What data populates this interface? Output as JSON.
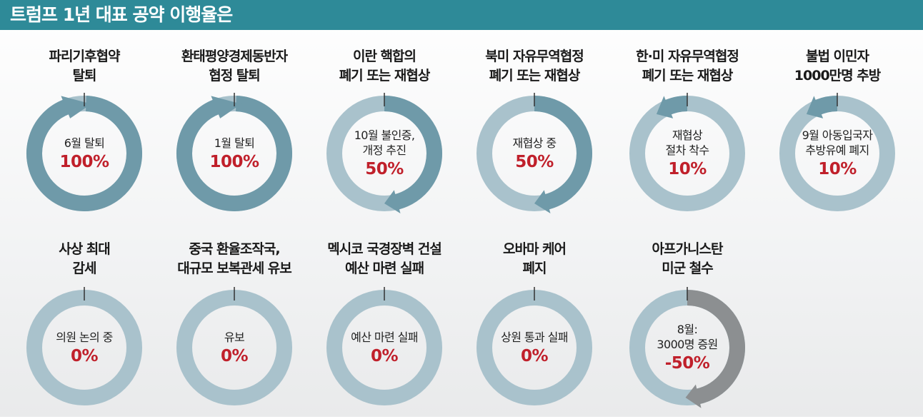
{
  "header": {
    "title": "트럼프 1년 대표 공약 이행율은"
  },
  "colors": {
    "track": "#a9c2cc",
    "progress": "#6f9aa9",
    "negative": "#8c8f91",
    "percent": "#c0202b",
    "header_bg": "#2e8a98"
  },
  "chart_data": {
    "type": "donut",
    "unit": "%",
    "items": [
      {
        "title": [
          "파리기후협약",
          "탈퇴"
        ],
        "desc": [
          "6월 탈퇴"
        ],
        "percent_label": "100%",
        "value": 100
      },
      {
        "title": [
          "환태평양경제동반자",
          "협정 탈퇴"
        ],
        "desc": [
          "1월 탈퇴"
        ],
        "percent_label": "100%",
        "value": 100
      },
      {
        "title": [
          "이란 핵합의",
          "폐기 또는 재협상"
        ],
        "desc": [
          "10월 불인증,",
          "개정 추진"
        ],
        "percent_label": "50%",
        "value": 50
      },
      {
        "title": [
          "북미 자유무역협정",
          "폐기 또는 재협상"
        ],
        "desc": [
          "재협상 중"
        ],
        "percent_label": "50%",
        "value": 50
      },
      {
        "title": [
          "한·미 자유무역협정",
          "폐기 또는 재협상"
        ],
        "desc": [
          "재협상",
          "절차 착수"
        ],
        "percent_label": "10%",
        "value": 10
      },
      {
        "title": [
          "불법 이민자",
          "1000만명 추방"
        ],
        "desc": [
          "9월 아동입국자",
          "추방유예 폐지"
        ],
        "percent_label": "10%",
        "value": 10
      },
      {
        "title": [
          "사상 최대",
          "감세"
        ],
        "desc": [
          "의원 논의 중"
        ],
        "percent_label": "0%",
        "value": 0
      },
      {
        "title": [
          "중국 환율조작국,",
          "대규모 보복관세 유보"
        ],
        "desc": [
          "유보"
        ],
        "percent_label": "0%",
        "value": 0
      },
      {
        "title": [
          "멕시코 국경장벽 건설",
          "예산 마련 실패"
        ],
        "desc": [
          "예산 마련 실패"
        ],
        "percent_label": "0%",
        "value": 0
      },
      {
        "title": [
          "오바마 케어",
          "폐지"
        ],
        "desc": [
          "상원 통과 실패"
        ],
        "percent_label": "0%",
        "value": 0
      },
      {
        "title": [
          "아프가니스탄",
          "미군 철수"
        ],
        "desc": [
          "8월:",
          "3000명 증원"
        ],
        "percent_label": "-50%",
        "value": -50
      }
    ]
  }
}
